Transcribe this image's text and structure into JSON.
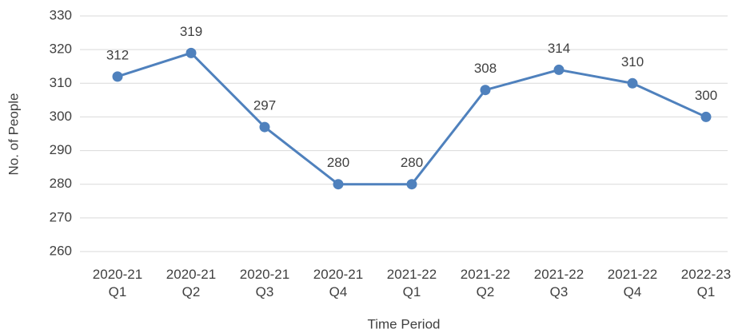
{
  "chart_data": {
    "type": "line",
    "x_label": "Time Period",
    "y_label": "No. of People",
    "categories": [
      "2020-21 Q1",
      "2020-21 Q2",
      "2020-21 Q3",
      "2020-21 Q4",
      "2021-22 Q1",
      "2021-22 Q2",
      "2021-22 Q3",
      "2021-22 Q4",
      "2022-23 Q1"
    ],
    "values": [
      312,
      319,
      297,
      280,
      280,
      308,
      314,
      310,
      300
    ],
    "color": "#4f81bd",
    "ylim": [
      260,
      330
    ],
    "yticks": [
      260,
      270,
      280,
      290,
      300,
      310,
      320,
      330
    ],
    "grid": true
  }
}
